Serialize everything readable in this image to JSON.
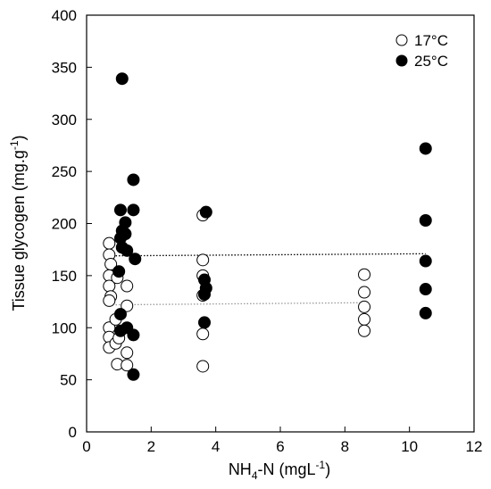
{
  "chart_data": {
    "type": "scatter",
    "xlabel_parts": [
      "NH",
      "4",
      "-N (mgL",
      "-1",
      ")"
    ],
    "ylabel_parts": [
      "Tissue glycogen (mg.g",
      "-1",
      ")"
    ],
    "xlim": [
      0,
      12
    ],
    "ylim": [
      0,
      400
    ],
    "xticks": [
      0,
      2,
      4,
      6,
      8,
      10,
      12
    ],
    "yticks": [
      0,
      50,
      100,
      150,
      200,
      250,
      300,
      350,
      400
    ],
    "grid": false,
    "legend_position": "top-right",
    "series": [
      {
        "name": "17°C",
        "marker": "open-circle",
        "color": "#000000",
        "points": [
          [
            0.7,
            181
          ],
          [
            0.7,
            170
          ],
          [
            0.75,
            161
          ],
          [
            0.7,
            150
          ],
          [
            0.7,
            140
          ],
          [
            0.75,
            130
          ],
          [
            0.7,
            126
          ],
          [
            0.7,
            100
          ],
          [
            0.7,
            91
          ],
          [
            0.7,
            81
          ],
          [
            0.95,
            148
          ],
          [
            0.9,
            108
          ],
          [
            0.9,
            85
          ],
          [
            0.95,
            65
          ],
          [
            1.0,
            90
          ],
          [
            1.25,
            140
          ],
          [
            1.25,
            121
          ],
          [
            1.25,
            76
          ],
          [
            1.25,
            64
          ],
          [
            3.6,
            208
          ],
          [
            3.6,
            165
          ],
          [
            3.6,
            150
          ],
          [
            3.6,
            131
          ],
          [
            3.6,
            94
          ],
          [
            3.6,
            63
          ],
          [
            8.6,
            151
          ],
          [
            8.6,
            134
          ],
          [
            8.6,
            120
          ],
          [
            8.6,
            108
          ],
          [
            8.6,
            97
          ]
        ]
      },
      {
        "name": "25°C",
        "marker": "filled-circle",
        "color": "#000000",
        "points": [
          [
            1.1,
            339
          ],
          [
            1.05,
            213
          ],
          [
            1.1,
            193
          ],
          [
            1.05,
            186
          ],
          [
            1.1,
            177
          ],
          [
            1.0,
            154
          ],
          [
            1.05,
            113
          ],
          [
            1.05,
            97
          ],
          [
            1.2,
            201
          ],
          [
            1.2,
            190
          ],
          [
            1.25,
            174
          ],
          [
            1.25,
            100
          ],
          [
            1.45,
            242
          ],
          [
            1.45,
            213
          ],
          [
            1.5,
            166
          ],
          [
            1.45,
            93
          ],
          [
            1.45,
            55
          ],
          [
            3.7,
            211
          ],
          [
            3.65,
            146
          ],
          [
            3.7,
            138
          ],
          [
            3.65,
            132
          ],
          [
            3.65,
            105
          ],
          [
            10.5,
            272
          ],
          [
            10.5,
            203
          ],
          [
            10.5,
            164
          ],
          [
            10.5,
            137
          ],
          [
            10.5,
            114
          ]
        ]
      }
    ],
    "trend_lines": [
      {
        "series": "25°C",
        "style": "dotted",
        "color": "#000000",
        "x": [
          0.9,
          10.5
        ],
        "y": [
          169,
          171
        ]
      },
      {
        "series": "17°C",
        "style": "dotted",
        "color": "#999999",
        "x": [
          0.9,
          8.6
        ],
        "y": [
          122,
          124
        ]
      }
    ]
  }
}
